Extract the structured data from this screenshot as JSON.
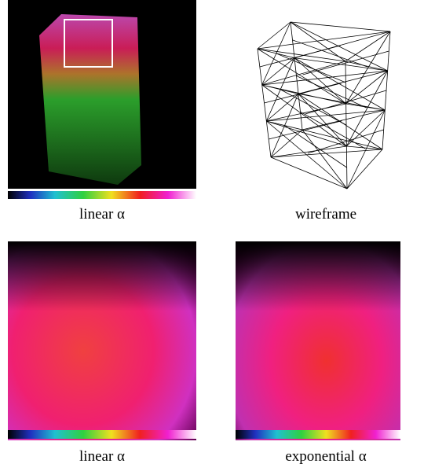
{
  "panels": [
    {
      "caption": "linear α"
    },
    {
      "caption": "wireframe"
    },
    {
      "caption": "linear α"
    },
    {
      "caption": "exponential α"
    }
  ]
}
